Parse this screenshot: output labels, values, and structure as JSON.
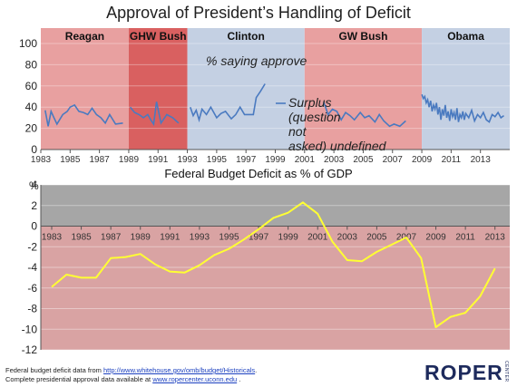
{
  "title": "Approval of President’s Handling of Deficit",
  "chart_data": [
    {
      "type": "line",
      "title": "Approval of President’s Handling of Deficit",
      "annotation": "% saying approve",
      "surplus_note": "Surplus (question not asked)",
      "ylim": [
        0,
        100
      ],
      "yticks": [
        0,
        20,
        40,
        60,
        80,
        100
      ],
      "xlim": [
        1983,
        2015
      ],
      "xticks": [
        1983,
        1985,
        1987,
        1989,
        1991,
        1993,
        1995,
        1997,
        1999,
        2001,
        2003,
        2005,
        2007,
        2009,
        2011,
        2013
      ],
      "presidencies": [
        {
          "name": "Reagan",
          "start": 1983,
          "end": 1989,
          "color": "#e8a0a0"
        },
        {
          "name": "GHW Bush",
          "start": 1989,
          "end": 1993,
          "color": "#d96060"
        },
        {
          "name": "Clinton",
          "start": 1993,
          "end": 2001,
          "color": "#c4d0e3"
        },
        {
          "name": "GW Bush",
          "start": 2001,
          "end": 2009,
          "color": "#e8a0a0"
        },
        {
          "name": "Obama",
          "start": 2009,
          "end": 2015,
          "color": "#c4d0e3"
        }
      ],
      "series": [
        {
          "segment": "Reagan",
          "x": [
            1983.3,
            1983.5,
            1983.7,
            1983.9,
            1984.1,
            1984.5,
            1984.8,
            1985.0,
            1985.3,
            1985.6,
            1985.9,
            1986.2,
            1986.5,
            1986.8,
            1987.1,
            1987.4,
            1987.7,
            1988.1,
            1988.6
          ],
          "y": [
            37,
            22,
            36,
            30,
            24,
            33,
            36,
            40,
            42,
            36,
            35,
            33,
            39,
            33,
            30,
            25,
            33,
            24,
            25
          ]
        },
        {
          "segment": "GHW Bush",
          "x": [
            1989.1,
            1989.4,
            1989.7,
            1990.0,
            1990.3,
            1990.5,
            1990.7,
            1990.9,
            1991.2,
            1991.6,
            1992.0,
            1992.4
          ],
          "y": [
            40,
            35,
            33,
            30,
            33,
            28,
            24,
            45,
            25,
            33,
            30,
            25
          ]
        },
        {
          "segment": "Clinton",
          "x": [
            1993.2,
            1993.4,
            1993.6,
            1993.8,
            1994.0,
            1994.3,
            1994.6,
            1995.0,
            1995.3,
            1995.6,
            1996.0,
            1996.3,
            1996.6,
            1996.9,
            1997.2,
            1997.5,
            1997.7,
            1998.0,
            1998.3
          ],
          "y": [
            40,
            32,
            37,
            28,
            38,
            33,
            40,
            30,
            34,
            36,
            29,
            33,
            40,
            33,
            33,
            33,
            49,
            55,
            62
          ]
        },
        {
          "segment": "GW Bush",
          "x": [
            2002.3,
            2002.6,
            2002.9,
            2003.2,
            2003.5,
            2003.8,
            2004.1,
            2004.4,
            2004.8,
            2005.1,
            2005.4,
            2005.8,
            2006.1,
            2006.4,
            2006.8,
            2007.1,
            2007.5,
            2007.9
          ],
          "y": [
            45,
            33,
            38,
            36,
            28,
            35,
            32,
            28,
            35,
            30,
            32,
            26,
            33,
            27,
            22,
            24,
            22,
            27
          ]
        },
        {
          "segment": "Obama",
          "x": [
            2009.0,
            2009.1,
            2009.2,
            2009.3,
            2009.4,
            2009.5,
            2009.6,
            2009.7,
            2009.8,
            2009.9,
            2010.0,
            2010.1,
            2010.2,
            2010.3,
            2010.4,
            2010.5,
            2010.6,
            2010.7,
            2010.8,
            2010.9,
            2011.0,
            2011.1,
            2011.2,
            2011.3,
            2011.4,
            2011.5,
            2011.6,
            2011.7,
            2011.8,
            2011.9,
            2012.0,
            2012.2,
            2012.4,
            2012.6,
            2012.8,
            2013.0,
            2013.2,
            2013.4,
            2013.6,
            2013.8,
            2014.0,
            2014.2,
            2014.4,
            2014.6
          ],
          "y": [
            52,
            48,
            50,
            44,
            47,
            40,
            46,
            36,
            42,
            38,
            44,
            33,
            40,
            28,
            38,
            32,
            42,
            30,
            36,
            27,
            38,
            31,
            35,
            28,
            39,
            26,
            33,
            30,
            36,
            28,
            34,
            30,
            37,
            27,
            33,
            30,
            35,
            28,
            26,
            33,
            31,
            35,
            30,
            32
          ]
        }
      ]
    },
    {
      "type": "line",
      "title": "Federal Budget Deficit as % of GDP",
      "ylabel": "%",
      "ylim": [
        -12,
        4
      ],
      "yticks": [
        -12,
        -10,
        -8,
        -6,
        -4,
        -2,
        0,
        2,
        4
      ],
      "xlim": [
        1983,
        2014
      ],
      "xticks": [
        1983,
        1985,
        1987,
        1989,
        1991,
        1993,
        1995,
        1997,
        1999,
        2001,
        2003,
        2005,
        2007,
        2009,
        2011,
        2013
      ],
      "series": [
        {
          "name": "Deficit % of GDP",
          "x": [
            1983,
            1984,
            1985,
            1986,
            1987,
            1988,
            1989,
            1990,
            1991,
            1992,
            1993,
            1994,
            1995,
            1996,
            1997,
            1998,
            1999,
            2000,
            2001,
            2002,
            2003,
            2004,
            2005,
            2006,
            2007,
            2008,
            2009,
            2010,
            2011,
            2012,
            2013
          ],
          "y": [
            -5.9,
            -4.7,
            -5.0,
            -5.0,
            -3.1,
            -3.0,
            -2.7,
            -3.7,
            -4.4,
            -4.5,
            -3.8,
            -2.8,
            -2.2,
            -1.3,
            -0.3,
            0.8,
            1.3,
            2.3,
            1.2,
            -1.5,
            -3.3,
            -3.4,
            -2.5,
            -1.8,
            -1.1,
            -3.1,
            -9.8,
            -8.8,
            -8.4,
            -6.8,
            -4.1
          ]
        }
      ]
    }
  ],
  "footer": {
    "line1_prefix": "Federal budget deficit data from ",
    "line1_link": "http://www.whitehouse.gov/omb/budget/Historicals",
    "line1_suffix": ".",
    "line2_prefix": "Complete presidential approval data available at ",
    "line2_link": "www.ropercenter.uconn.edu",
    "line2_suffix": " ."
  },
  "logo": {
    "text": "ROPER",
    "sub": "CENTER"
  },
  "colors": {
    "approval_line": "#4a7ac0",
    "deficit_line": "#ffff33",
    "surplus_zone": "#a6a6a6",
    "deficit_zone": "#d9a3a3"
  }
}
